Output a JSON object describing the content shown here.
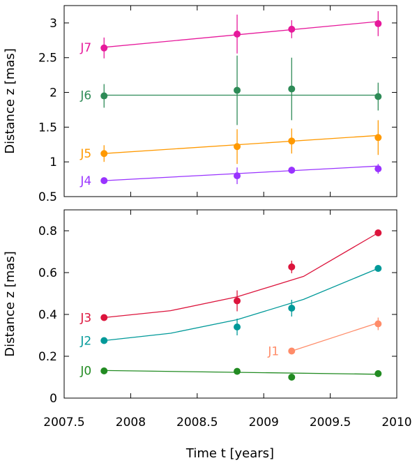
{
  "chart_data": [
    {
      "type": "scatter",
      "panel": "top",
      "xlabel": "",
      "ylabel": "Distance z [mas]",
      "xlim": [
        2007.5,
        2010
      ],
      "ylim": [
        0.5,
        3.25
      ],
      "grid": false,
      "x_ticks": [],
      "y_ticks": [
        "0.5",
        "1",
        "1.5",
        "2",
        "2.5",
        "3"
      ],
      "series": [
        {
          "name": "J7",
          "color": "#e6199b",
          "points": [
            {
              "x": 2007.8,
              "y": 2.64,
              "err": 0.15
            },
            {
              "x": 2008.8,
              "y": 2.84,
              "err": 0.28
            },
            {
              "x": 2009.21,
              "y": 2.91,
              "err": 0.13
            },
            {
              "x": 2009.86,
              "y": 2.99,
              "err": 0.18
            }
          ],
          "fit": [
            [
              2007.8,
              2.65
            ],
            [
              2009.86,
              3.02
            ]
          ]
        },
        {
          "name": "J6",
          "color": "#2e8b57",
          "points": [
            {
              "x": 2007.8,
              "y": 1.95,
              "err": 0.17
            },
            {
              "x": 2008.8,
              "y": 2.03,
              "err": 0.5
            },
            {
              "x": 2009.21,
              "y": 2.05,
              "err": 0.45
            },
            {
              "x": 2009.86,
              "y": 1.94,
              "err": 0.2
            }
          ],
          "fit": [
            [
              2007.8,
              1.96
            ],
            [
              2009.86,
              1.96
            ]
          ]
        },
        {
          "name": "J5",
          "color": "#ff9900",
          "points": [
            {
              "x": 2007.8,
              "y": 1.12,
              "err": 0.12
            },
            {
              "x": 2008.8,
              "y": 1.22,
              "err": 0.25
            },
            {
              "x": 2009.21,
              "y": 1.3,
              "err": 0.18
            },
            {
              "x": 2009.86,
              "y": 1.35,
              "err": 0.25
            }
          ],
          "fit": [
            [
              2007.8,
              1.12
            ],
            [
              2009.86,
              1.38
            ]
          ]
        },
        {
          "name": "J4",
          "color": "#9933ff",
          "points": [
            {
              "x": 2007.8,
              "y": 0.73,
              "err": 0.04
            },
            {
              "x": 2008.8,
              "y": 0.8,
              "err": 0.12
            },
            {
              "x": 2009.21,
              "y": 0.88,
              "err": 0.05
            },
            {
              "x": 2009.86,
              "y": 0.9,
              "err": 0.07
            }
          ],
          "fit": [
            [
              2007.8,
              0.73
            ],
            [
              2009.86,
              0.94
            ]
          ]
        }
      ]
    },
    {
      "type": "scatter",
      "panel": "bottom",
      "xlabel": "Time t [years]",
      "ylabel": "Distance z [mas]",
      "xlim": [
        2007.5,
        2010
      ],
      "ylim": [
        0,
        0.9
      ],
      "grid": false,
      "x_ticks": [
        "2007.5",
        "2008",
        "2008.5",
        "2009",
        "2009.5",
        "2010"
      ],
      "y_ticks": [
        "0",
        "0.2",
        "0.4",
        "0.6",
        "0.8"
      ],
      "series": [
        {
          "name": "J3",
          "color": "#dc143c",
          "points": [
            {
              "x": 2007.8,
              "y": 0.385,
              "err": 0.01
            },
            {
              "x": 2008.8,
              "y": 0.465,
              "err": 0.05
            },
            {
              "x": 2009.21,
              "y": 0.627,
              "err": 0.03
            },
            {
              "x": 2009.86,
              "y": 0.79,
              "err": 0.01
            }
          ],
          "fit": [
            [
              2007.8,
              0.385
            ],
            [
              2008.3,
              0.418
            ],
            [
              2008.8,
              0.484
            ],
            [
              2009.3,
              0.582
            ],
            [
              2009.86,
              0.79
            ]
          ]
        },
        {
          "name": "J2",
          "color": "#009999",
          "points": [
            {
              "x": 2007.8,
              "y": 0.275,
              "err": 0.01
            },
            {
              "x": 2008.8,
              "y": 0.34,
              "err": 0.04
            },
            {
              "x": 2009.21,
              "y": 0.43,
              "err": 0.04
            },
            {
              "x": 2009.86,
              "y": 0.62,
              "err": 0.01
            }
          ],
          "fit": [
            [
              2007.8,
              0.275
            ],
            [
              2008.3,
              0.31
            ],
            [
              2008.8,
              0.375
            ],
            [
              2009.3,
              0.472
            ],
            [
              2009.86,
              0.62
            ]
          ]
        },
        {
          "name": "J1",
          "color": "#ff8c69",
          "points": [
            {
              "x": 2009.21,
              "y": 0.225,
              "err": 0.01
            },
            {
              "x": 2009.86,
              "y": 0.355,
              "err": 0.03
            }
          ],
          "fit": [
            [
              2009.21,
              0.225
            ],
            [
              2009.86,
              0.36
            ]
          ]
        },
        {
          "name": "J0",
          "color": "#228b22",
          "points": [
            {
              "x": 2007.8,
              "y": 0.13,
              "err": 0.01
            },
            {
              "x": 2008.8,
              "y": 0.128,
              "err": 0.01
            },
            {
              "x": 2009.21,
              "y": 0.1,
              "err": 0.01
            },
            {
              "x": 2009.86,
              "y": 0.117,
              "err": 0.01
            }
          ],
          "fit": [
            [
              2007.8,
              0.132
            ],
            [
              2009.86,
              0.114
            ]
          ]
        }
      ]
    }
  ]
}
